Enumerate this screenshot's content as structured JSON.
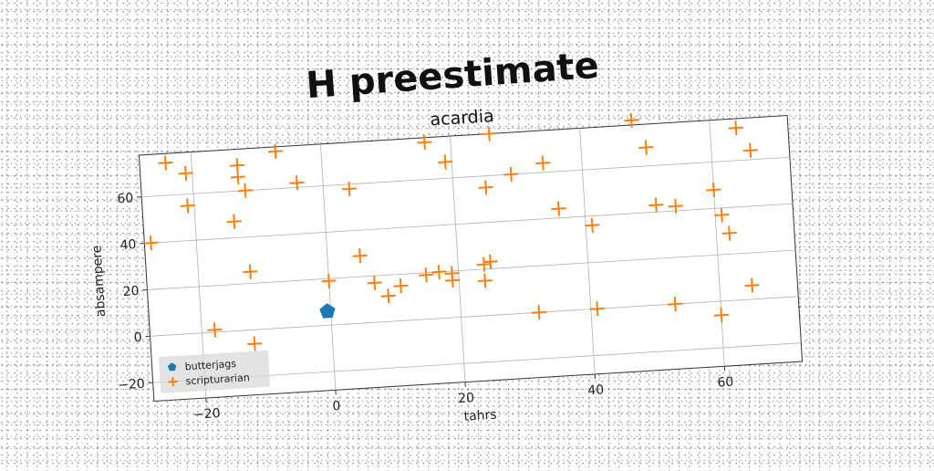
{
  "chart_data": {
    "type": "scatter",
    "title": "H preestimate",
    "subtitle": "acardia",
    "xlabel": "tahrs",
    "ylabel": "absampere",
    "xlim": [
      -28,
      72
    ],
    "ylim": [
      -28,
      78
    ],
    "xticks": [
      -20,
      0,
      20,
      40,
      60
    ],
    "yticks": [
      -20,
      0,
      20,
      40,
      60
    ],
    "grid": true,
    "legend_position": "lower-left",
    "series": [
      {
        "name": "butterjags",
        "marker": "pentagon",
        "color": "#1f77b4",
        "points": [
          [
            -0.5,
            6
          ]
        ]
      },
      {
        "name": "scripturarian",
        "marker": "plus",
        "color": "#ff7f0e",
        "points": [
          [
            -27,
            40
          ],
          [
            -24,
            74
          ],
          [
            -21,
            69
          ],
          [
            -21,
            55
          ],
          [
            -18,
            1
          ],
          [
            -14,
            47
          ],
          [
            -13,
            71
          ],
          [
            -13,
            66
          ],
          [
            -12,
            60
          ],
          [
            -12,
            25
          ],
          [
            -12,
            -6
          ],
          [
            -7,
            76
          ],
          [
            -4,
            62
          ],
          [
            0,
            19
          ],
          [
            4,
            58
          ],
          [
            5,
            29
          ],
          [
            7,
            17
          ],
          [
            9,
            11
          ],
          [
            11,
            15
          ],
          [
            15,
            19
          ],
          [
            16,
            76
          ],
          [
            17,
            20
          ],
          [
            19,
            19
          ],
          [
            19,
            16
          ],
          [
            19,
            67
          ],
          [
            24,
            15
          ],
          [
            24,
            22
          ],
          [
            25,
            23
          ],
          [
            25,
            55
          ],
          [
            26,
            78
          ],
          [
            29,
            60
          ],
          [
            32,
            0
          ],
          [
            34,
            64
          ],
          [
            36,
            44
          ],
          [
            41,
            0
          ],
          [
            41,
            36
          ],
          [
            48,
            80
          ],
          [
            50,
            68
          ],
          [
            51,
            43
          ],
          [
            53,
            0
          ],
          [
            54,
            42
          ],
          [
            60,
            48
          ],
          [
            60,
            -6
          ],
          [
            61,
            37
          ],
          [
            62,
            29
          ],
          [
            64,
            74
          ],
          [
            65,
            6
          ],
          [
            66,
            64
          ]
        ]
      }
    ]
  }
}
